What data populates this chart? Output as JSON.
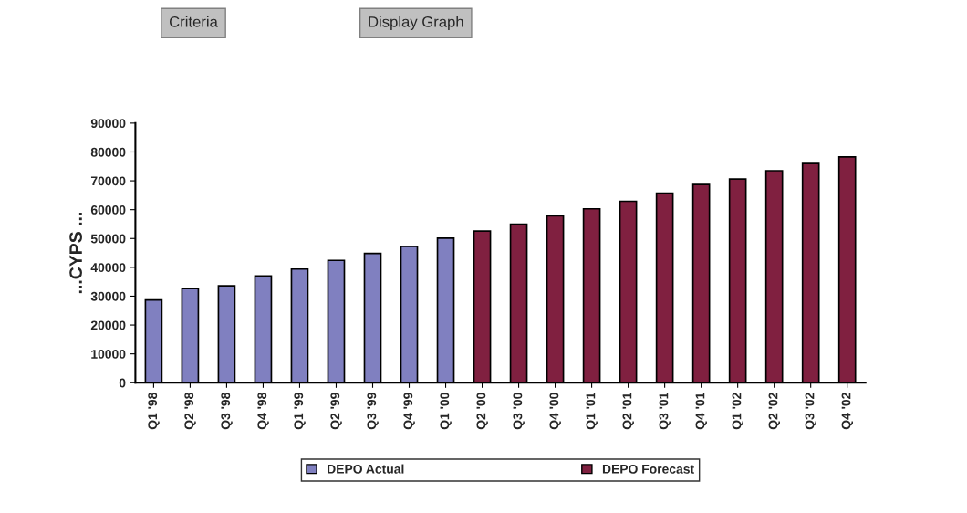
{
  "chart_data": {
    "type": "bar",
    "ylabel": "...CYPS ...",
    "annotations": [
      "Criteria",
      "Display Graph"
    ],
    "categories": [
      "Q1 '98",
      "Q2 '98",
      "Q3 '98",
      "Q4 '98",
      "Q1 '99",
      "Q2 '99",
      "Q3 '99",
      "Q4 '99",
      "Q1 '00",
      "Q2 '00",
      "Q3 '00",
      "Q4 '00",
      "Q1 '01",
      "Q2 '01",
      "Q3 '01",
      "Q4 '01",
      "Q1 '02",
      "Q2 '02",
      "Q3 '02",
      "Q4 '02"
    ],
    "series": [
      {
        "name": "DEPO Actual",
        "color": "#8080c0",
        "values": [
          28700,
          32600,
          33600,
          37000,
          39400,
          42400,
          44800,
          47300,
          50100,
          null,
          null,
          null,
          null,
          null,
          null,
          null,
          null,
          null,
          null,
          null
        ]
      },
      {
        "name": "DEPO Forecast",
        "color": "#802040",
        "values": [
          null,
          null,
          null,
          null,
          null,
          null,
          null,
          null,
          null,
          52600,
          55000,
          57900,
          60300,
          62900,
          65700,
          68700,
          70600,
          73500,
          76000,
          78300
        ]
      }
    ],
    "ylim": [
      0,
      90000
    ],
    "yticks": [
      0,
      10000,
      20000,
      30000,
      40000,
      50000,
      60000,
      70000,
      80000,
      90000
    ],
    "grid": false,
    "legend": "bottom"
  }
}
